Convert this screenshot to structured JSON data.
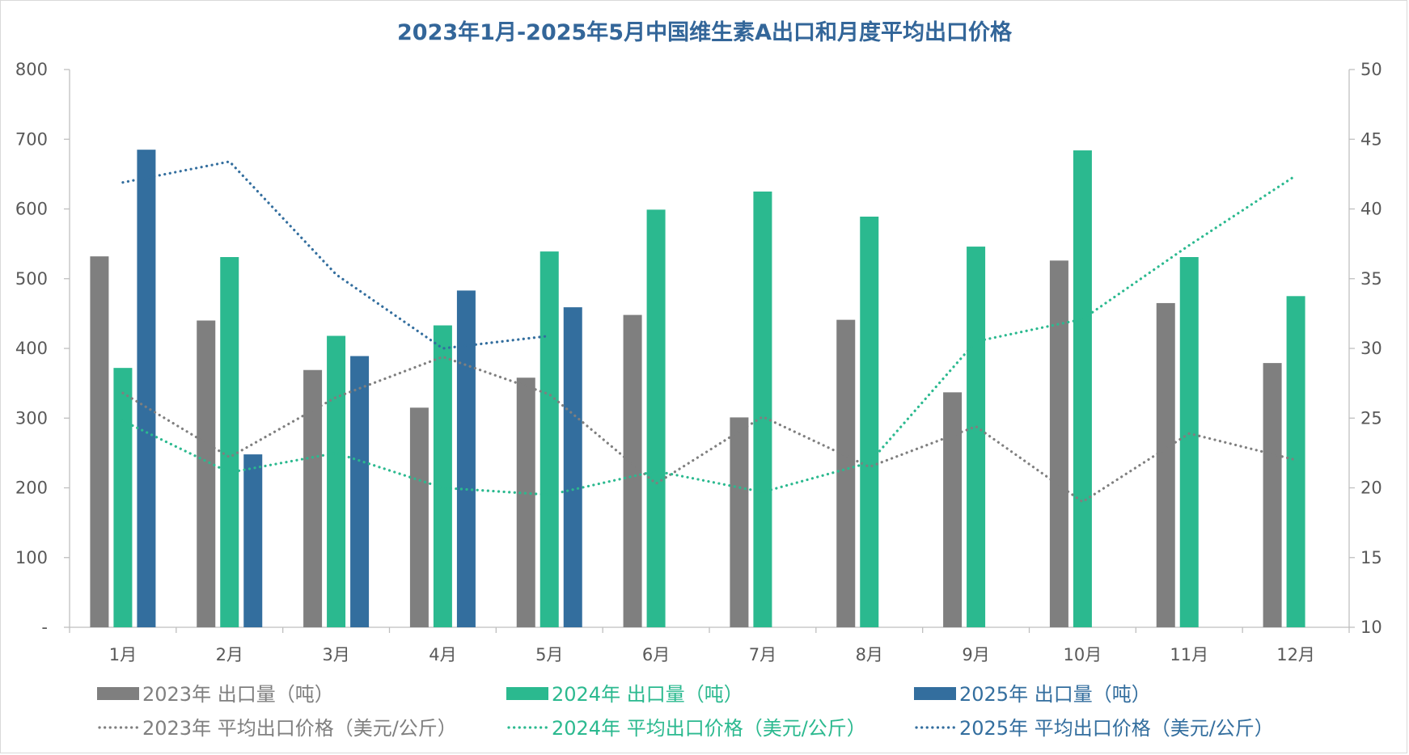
{
  "chart_data": {
    "type": "bar",
    "title": "2023年1月-2025年5月中国维生素A出口和月度平均出口价格",
    "categories": [
      "1月",
      "2月",
      "3月",
      "4月",
      "5月",
      "6月",
      "7月",
      "8月",
      "9月",
      "10月",
      "11月",
      "12月"
    ],
    "y_left": {
      "ticks": [
        "-",
        "100",
        "200",
        "300",
        "400",
        "500",
        "600",
        "700",
        "800"
      ],
      "range": [
        0,
        800
      ]
    },
    "y_right": {
      "ticks": [
        "10",
        "15",
        "20",
        "25",
        "30",
        "35",
        "40",
        "45",
        "50"
      ],
      "range": [
        10,
        50
      ]
    },
    "grid": false,
    "legend_position": "bottom",
    "series": [
      {
        "name": "2023年 出口量（吨）",
        "kind": "bar",
        "axis": "left",
        "color": "#7f7f7f",
        "values": [
          532,
          440,
          369,
          315,
          358,
          448,
          301,
          441,
          337,
          526,
          465,
          379
        ]
      },
      {
        "name": "2024年 出口量（吨）",
        "kind": "bar",
        "axis": "left",
        "color": "#2bb98f",
        "values": [
          372,
          531,
          418,
          433,
          539,
          599,
          625,
          589,
          546,
          684,
          531,
          475
        ]
      },
      {
        "name": "2025年 出口量（吨）",
        "kind": "bar",
        "axis": "left",
        "color": "#336e9e",
        "values": [
          685,
          248,
          389,
          483,
          459,
          null,
          null,
          null,
          null,
          null,
          null,
          null
        ]
      },
      {
        "name": "2023年 平均出口价格（美元/公斤）",
        "kind": "line",
        "axis": "right",
        "color": "#7f7f7f",
        "values": [
          26.8,
          22.2,
          26.5,
          29.4,
          26.7,
          20.3,
          25.1,
          21.5,
          24.4,
          19.0,
          23.9,
          22.0
        ]
      },
      {
        "name": "2024年 平均出口价格（美元/公斤）",
        "kind": "line",
        "axis": "right",
        "color": "#2bb98f",
        "values": [
          24.8,
          21.1,
          22.5,
          20.0,
          19.5,
          21.2,
          19.7,
          21.8,
          30.5,
          32.1,
          37.4,
          42.4
        ]
      },
      {
        "name": "2025年 平均出口价格（美元/公斤）",
        "kind": "line",
        "axis": "right",
        "color": "#336e9e",
        "values": [
          41.9,
          43.4,
          35.3,
          30.0,
          30.9,
          null,
          null,
          null,
          null,
          null,
          null,
          null
        ]
      }
    ]
  }
}
